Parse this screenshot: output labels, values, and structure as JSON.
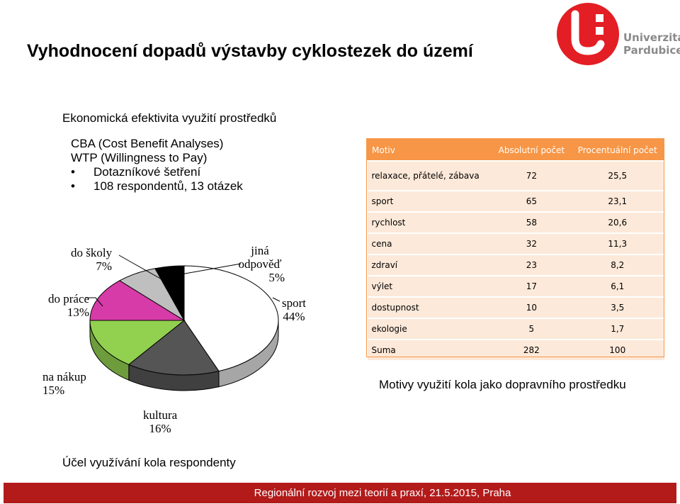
{
  "slide": {
    "title": "Vyhodnocení dopadů výstavby cyklostezek do území",
    "subtitle": "Ekonomická efektivita využití prostředků",
    "lines": [
      "CBA (Cost Benefit Analyses)",
      "WTP (Willingness to Pay)"
    ],
    "bullets": [
      "Dotazníkové šetření",
      "108 respondentů, 13 otázek"
    ]
  },
  "logo": {
    "line1": "Univerzita",
    "line2": "Pardubice",
    "colors": {
      "red": "#e31e24",
      "gray": "#8a8a8a"
    }
  },
  "table": {
    "headers": [
      "Motiv",
      "Absolutní počet",
      "Procentuální počet"
    ],
    "rows": [
      [
        "relaxace, přátelé, zábava",
        "72",
        "25,5"
      ],
      [
        "sport",
        "65",
        "23,1"
      ],
      [
        "rychlost",
        "58",
        "20,6"
      ],
      [
        "cena",
        "32",
        "11,3"
      ],
      [
        "zdraví",
        "23",
        "8,2"
      ],
      [
        "výlet",
        "17",
        "6,1"
      ],
      [
        "dostupnost",
        "10",
        "3,5"
      ],
      [
        "ekologie",
        "5",
        "1,7"
      ],
      [
        "Suma",
        "282",
        "100"
      ]
    ],
    "caption": "Motivy využití kola jako dopravního prostředku",
    "header_color": "#f79646",
    "row_color": "#fde9d9"
  },
  "chart_data": {
    "type": "pie",
    "title": "",
    "slices": [
      {
        "label": "sport",
        "value": 44,
        "display": "44%",
        "color": "#ffffff"
      },
      {
        "label": "kultura",
        "value": 16,
        "display": "16%",
        "color": "#555555"
      },
      {
        "label": "na nákup",
        "value": 15,
        "display": "15%",
        "color": "#92d050"
      },
      {
        "label": "do práce",
        "value": 13,
        "display": "13%",
        "color": "#d63ba7"
      },
      {
        "label": "do školy",
        "value": 7,
        "display": "7%",
        "color": "#bfbfbf"
      },
      {
        "label": "jiná odpověď",
        "value": 5,
        "display": "5%",
        "color": "#000000"
      }
    ],
    "caption": "Účel využívání kola respondenty"
  },
  "footer": {
    "text": "Regionální rozvoj mezi teorií a praxí, 21.5.2015, Praha",
    "color": "#b31b1b"
  }
}
